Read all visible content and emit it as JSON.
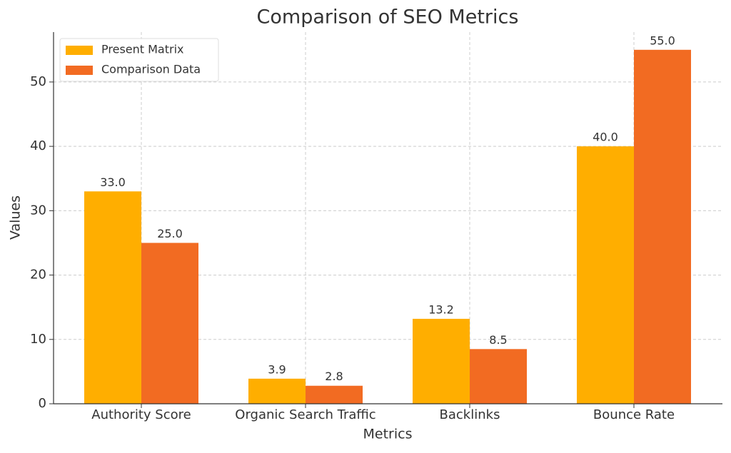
{
  "chart_data": {
    "type": "bar",
    "title": "Comparison of SEO Metrics",
    "x_label": "Metrics",
    "y_label": "Values",
    "categories": [
      "Authority Score",
      "Organic Search Traffic",
      "Backlinks",
      "Bounce Rate"
    ],
    "series": [
      {
        "name": "Present Matrix",
        "color": "#ffae00",
        "values": [
          33,
          3.9,
          13.2,
          40
        ],
        "value_labels": [
          "33.0",
          "3.9",
          "13.2",
          "40.0"
        ]
      },
      {
        "name": "Comparison Data",
        "color": "#f26b22",
        "values": [
          25,
          2.8,
          8.5,
          55
        ],
        "value_labels": [
          "25.0",
          "2.8",
          "8.5",
          "55.0"
        ]
      }
    ],
    "ylim": [
      0,
      57.75
    ],
    "yticks": [
      0,
      10,
      20,
      30,
      40,
      50
    ],
    "grid": true,
    "legend": "upper left"
  }
}
